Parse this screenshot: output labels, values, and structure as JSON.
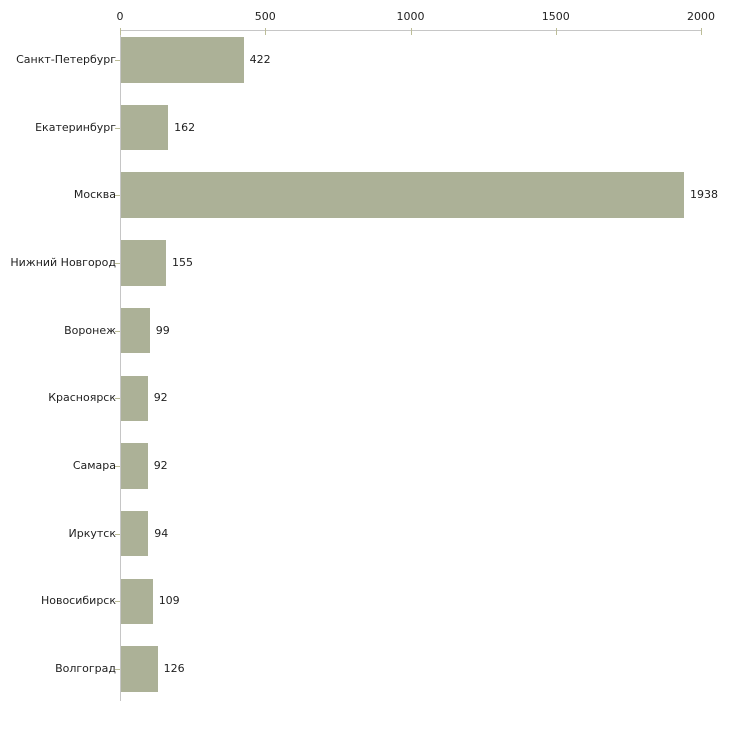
{
  "chart_data": {
    "type": "bar",
    "orientation": "horizontal",
    "title": "",
    "xlabel": "",
    "ylabel": "",
    "legend": "none",
    "grid": false,
    "categories": [
      "Санкт-Петербург",
      "Екатеринбург",
      "Москва",
      "Нижний Новгород",
      "Воронеж",
      "Красноярск",
      "Самара",
      "Иркутск",
      "Новосибирск",
      "Волгоград"
    ],
    "values": [
      422,
      162,
      1938,
      155,
      99,
      92,
      92,
      94,
      109,
      126
    ],
    "value_labels": [
      "422",
      "162",
      "1938",
      "155",
      "99",
      "92",
      "92",
      "94",
      "109",
      "126"
    ],
    "x_ticks": [
      0,
      500,
      1000,
      1500,
      2000
    ],
    "x_tick_labels": [
      "0",
      "500",
      "1000",
      "1500",
      "2000"
    ],
    "xlim": [
      0,
      2000
    ],
    "colors": {
      "bar_fill": "#acb197",
      "axis_line": "#c6c6c6",
      "tick_mark": "#bcbd97",
      "text": "#1f1f1f",
      "background": "#ffffff"
    }
  }
}
